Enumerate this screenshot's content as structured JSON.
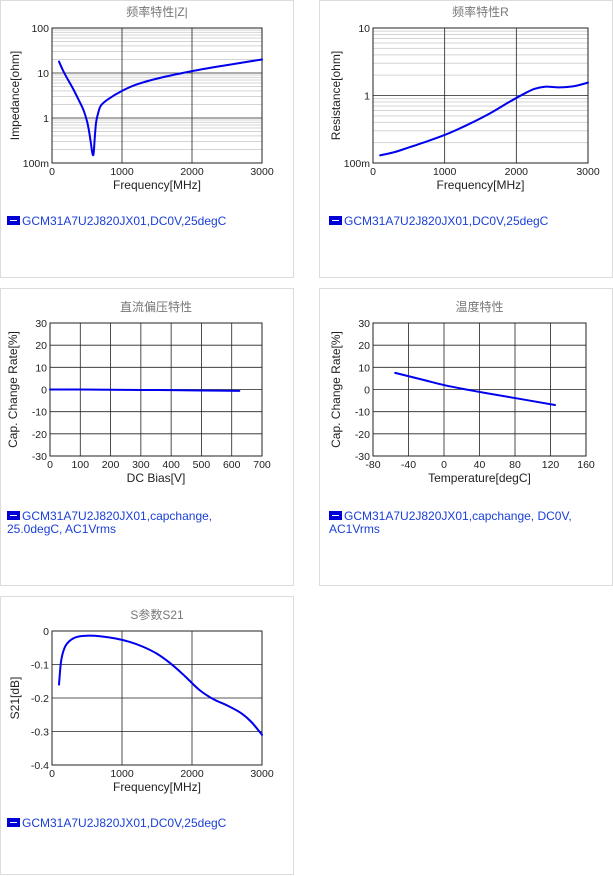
{
  "chart_data": [
    {
      "id": "z",
      "type": "line",
      "title": "频率特性|Z|",
      "xlabel": "Frequency[MHz]",
      "ylabel": "Impedance[ohm]",
      "xscale": "linear",
      "yscale": "log",
      "xlim": [
        0,
        3000
      ],
      "ylim": [
        0.1,
        100
      ],
      "xticks": [
        0,
        1000,
        2000,
        3000
      ],
      "xtick_labels": [
        "0",
        "1000",
        "2000",
        "3000"
      ],
      "yticks": [
        0.1,
        1,
        10,
        100
      ],
      "ytick_labels": [
        "100m",
        "1",
        "10",
        "100"
      ],
      "series": [
        {
          "name": "GCM31A7U2J820JX01,DC0V,25degC",
          "color": "#0000ee",
          "x": [
            100,
            150,
            200,
            300,
            400,
            450,
            500,
            530,
            555,
            575,
            590,
            600,
            610,
            630,
            660,
            700,
            800,
            1000,
            1200,
            1500,
            2000,
            2500,
            3000
          ],
          "y": [
            18,
            12,
            8.5,
            4.5,
            2.2,
            1.5,
            0.85,
            0.5,
            0.28,
            0.17,
            0.15,
            0.2,
            0.35,
            0.8,
            1.3,
            1.9,
            2.6,
            4.0,
            5.5,
            7.5,
            11,
            15,
            20
          ]
        }
      ],
      "legend": "GCM31A7U2J820JX01,DC0V,25degC"
    },
    {
      "id": "r",
      "type": "line",
      "title": "频率特性R",
      "xlabel": "Frequency[MHz]",
      "ylabel": "Resistance[ohm]",
      "xscale": "linear",
      "yscale": "log",
      "xlim": [
        0,
        3000
      ],
      "ylim": [
        0.1,
        10
      ],
      "xticks": [
        0,
        1000,
        2000,
        3000
      ],
      "xtick_labels": [
        "0",
        "1000",
        "2000",
        "3000"
      ],
      "yticks": [
        0.1,
        1,
        10
      ],
      "ytick_labels": [
        "100m",
        "1",
        "10"
      ],
      "series": [
        {
          "name": "GCM31A7U2J820JX01,DC0V,25degC",
          "color": "#0000ee",
          "x": [
            100,
            300,
            500,
            700,
            1000,
            1300,
            1600,
            1900,
            2100,
            2250,
            2400,
            2600,
            2800,
            3000
          ],
          "y": [
            0.13,
            0.145,
            0.17,
            0.2,
            0.26,
            0.36,
            0.52,
            0.8,
            1.05,
            1.25,
            1.35,
            1.32,
            1.37,
            1.55
          ]
        }
      ],
      "legend": "GCM31A7U2J820JX01,DC0V,25degC"
    },
    {
      "id": "dcbias",
      "type": "line",
      "title": "直流偏压特性",
      "xlabel": "DC Bias[V]",
      "ylabel": "Cap. Change Rate[%]",
      "xscale": "linear",
      "yscale": "linear",
      "xlim": [
        0,
        700
      ],
      "ylim": [
        -30,
        30
      ],
      "xticks": [
        0,
        100,
        200,
        300,
        400,
        500,
        600,
        700
      ],
      "xtick_labels": [
        "0",
        "100",
        "200",
        "300",
        "400",
        "500",
        "600",
        "700"
      ],
      "yticks": [
        -30,
        -20,
        -10,
        0,
        10,
        20,
        30
      ],
      "ytick_labels": [
        "-30",
        "-20",
        "-10",
        "0",
        "10",
        "20",
        "30"
      ],
      "series": [
        {
          "name": "GCM31A7U2J820JX01,capchange, 25.0degC, AC1Vrms",
          "color": "#0000ee",
          "x": [
            0,
            100,
            200,
            300,
            400,
            500,
            625
          ],
          "y": [
            0,
            0,
            -0.1,
            -0.2,
            -0.3,
            -0.45,
            -0.6
          ]
        }
      ],
      "legend_lines": [
        "GCM31A7U2J820JX01,capchange,",
        "25.0degC, AC1Vrms"
      ]
    },
    {
      "id": "temp",
      "type": "line",
      "title": "温度特性",
      "xlabel": "Temperature[degC]",
      "ylabel": "Cap. Change Rate[%]",
      "xscale": "linear",
      "yscale": "linear",
      "xlim": [
        -80,
        160
      ],
      "ylim": [
        -30,
        30
      ],
      "xticks": [
        -80,
        -40,
        0,
        40,
        80,
        120,
        160
      ],
      "xtick_labels": [
        "-80",
        "-40",
        "0",
        "40",
        "80",
        "120",
        "160"
      ],
      "yticks": [
        -30,
        -20,
        -10,
        0,
        10,
        20,
        30
      ],
      "ytick_labels": [
        "-30",
        "-20",
        "-10",
        "0",
        "10",
        "20",
        "30"
      ],
      "series": [
        {
          "name": "GCM31A7U2J820JX01,capchange, DC0V, AC1Vrms",
          "color": "#0000ee",
          "x": [
            -55,
            -25,
            0,
            25,
            50,
            85,
            125
          ],
          "y": [
            7.5,
            4.5,
            2,
            0,
            -1.8,
            -4.2,
            -7
          ]
        }
      ],
      "legend_lines": [
        "GCM31A7U2J820JX01,capchange, DC0V,",
        "AC1Vrms"
      ]
    },
    {
      "id": "s21",
      "type": "line",
      "title": "S参数S21",
      "xlabel": "Frequency[MHz]",
      "ylabel": "S21[dB]",
      "xscale": "linear",
      "yscale": "linear",
      "xlim": [
        0,
        3000
      ],
      "ylim": [
        -0.4,
        0
      ],
      "xticks": [
        0,
        1000,
        2000,
        3000
      ],
      "xtick_labels": [
        "0",
        "1000",
        "2000",
        "3000"
      ],
      "yticks": [
        -0.4,
        -0.3,
        -0.2,
        -0.1,
        0
      ],
      "ytick_labels": [
        "-0.4",
        "-0.3",
        "-0.2",
        "-0.1",
        "0"
      ],
      "series": [
        {
          "name": "GCM31A7U2J820JX01,DC0V,25degC",
          "color": "#0000ee",
          "x": [
            100,
            130,
            180,
            250,
            350,
            500,
            700,
            900,
            1100,
            1300,
            1500,
            1700,
            1900,
            2100,
            2300,
            2500,
            2700,
            2850,
            3000
          ],
          "y": [
            -0.16,
            -0.09,
            -0.05,
            -0.03,
            -0.018,
            -0.014,
            -0.016,
            -0.022,
            -0.032,
            -0.047,
            -0.068,
            -0.098,
            -0.135,
            -0.175,
            -0.203,
            -0.222,
            -0.245,
            -0.272,
            -0.31
          ]
        }
      ],
      "legend": "GCM31A7U2J820JX01,DC0V,25degC"
    }
  ]
}
